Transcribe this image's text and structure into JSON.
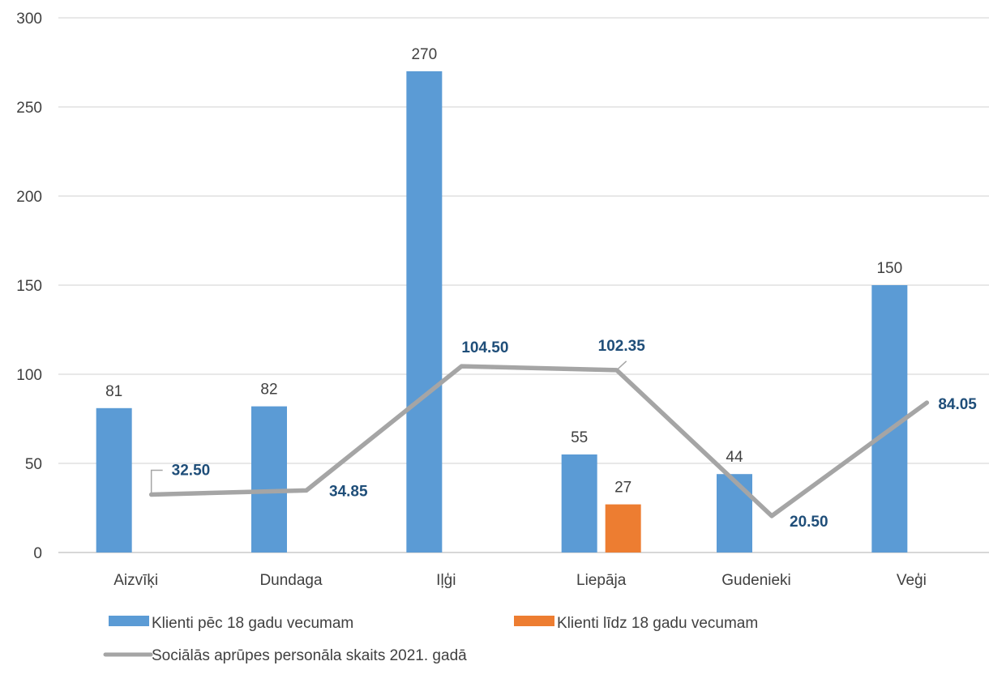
{
  "chart_data": {
    "type": "bar",
    "categories": [
      "Aizvīķi",
      "Dundaga",
      "Iļģi",
      "Liepāja",
      "Gudenieki",
      "Veģi"
    ],
    "ylim": [
      0,
      300
    ],
    "yticks": [
      0,
      50,
      100,
      150,
      200,
      250,
      300
    ],
    "grid": true,
    "legend_position": "bottom",
    "series": [
      {
        "name": "Klienti pēc 18 gadu vecumam",
        "type": "bar",
        "color": "#5b9bd5",
        "values": [
          81,
          82,
          270,
          55,
          44,
          150
        ],
        "labels": [
          "81",
          "82",
          "270",
          "55",
          "44",
          "150"
        ]
      },
      {
        "name": "Klienti līdz 18 gadu vecumam",
        "type": "bar",
        "color": "#ed7d31",
        "values": [
          null,
          null,
          null,
          27,
          null,
          null
        ],
        "labels": [
          "",
          "",
          "",
          "27",
          "",
          ""
        ]
      },
      {
        "name": "Sociālās aprūpes personāla skaits 2021. gadā",
        "type": "line",
        "color": "#a5a5a5",
        "values": [
          32.5,
          34.85,
          104.5,
          102.35,
          20.5,
          84.05
        ],
        "labels": [
          "32.50",
          "34.85",
          "104.50",
          "102.35",
          "20.50",
          "84.05"
        ]
      }
    ]
  }
}
